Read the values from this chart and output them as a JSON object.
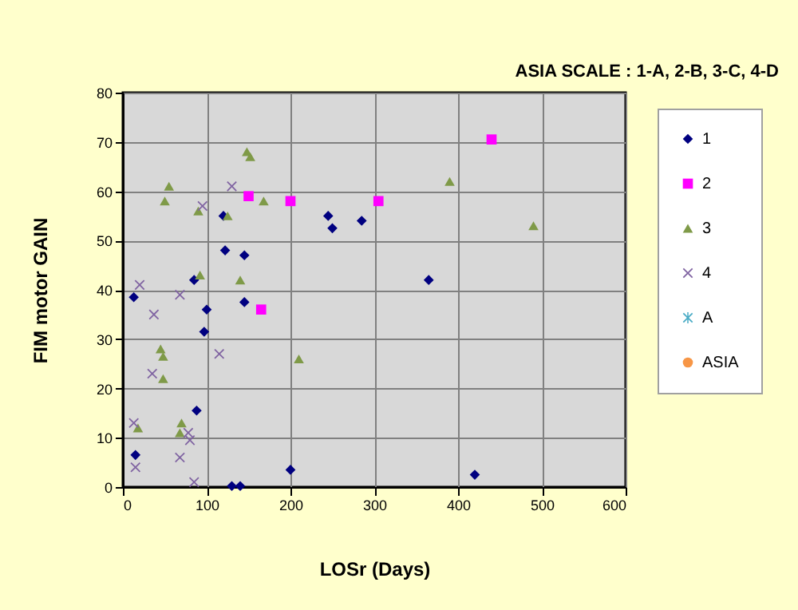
{
  "chart_data": {
    "type": "scatter",
    "title": "ASIA SCALE : 1-A, 2-B, 3-C, 4-D",
    "xlabel": "LOSr (Days)",
    "ylabel": "FIM motor GAIN",
    "xlim": [
      0,
      600
    ],
    "xticks": [
      0,
      100,
      200,
      300,
      400,
      500,
      600
    ],
    "ylim": [
      0,
      80
    ],
    "yticks": [
      0,
      10,
      20,
      30,
      40,
      50,
      60,
      70,
      80
    ],
    "grid": true,
    "legend": "right",
    "series": [
      {
        "name": "1",
        "color": "#000080",
        "marker": "diamond",
        "x": [
          13,
          15,
          85,
          88,
          97,
          100,
          120,
          122,
          130,
          140,
          145,
          145,
          200,
          245,
          250,
          285,
          365,
          420
        ],
        "values": [
          38.5,
          6.5,
          42,
          15.5,
          31.5,
          36,
          55,
          48,
          0.2,
          0.2,
          47,
          37.5,
          3.5,
          55,
          52.5,
          54,
          42,
          2.5
        ]
      },
      {
        "name": "2",
        "color": "#ff00ff",
        "marker": "square",
        "x": [
          150,
          165,
          200,
          305,
          440
        ],
        "values": [
          59,
          36,
          58,
          58,
          70.5
        ]
      },
      {
        "name": "3",
        "color": "#7f9a48",
        "marker": "triangle",
        "x": [
          18,
          45,
          48,
          48,
          50,
          55,
          68,
          70,
          90,
          92,
          125,
          140,
          148,
          152,
          168,
          210,
          390,
          490
        ],
        "values": [
          12,
          28,
          26.5,
          22,
          58,
          61,
          11,
          13,
          56,
          43,
          55,
          42,
          68,
          67,
          58,
          26,
          62,
          53
        ]
      },
      {
        "name": "4",
        "color": "#8064a2",
        "marker": "cross",
        "x": [
          13,
          15,
          20,
          35,
          37,
          68,
          68,
          78,
          80,
          85,
          95,
          115,
          130
        ],
        "values": [
          13,
          4,
          41,
          23,
          35,
          39,
          6,
          11,
          9.5,
          1,
          57,
          27,
          61
        ]
      },
      {
        "name": "A",
        "color": "#4bacc6",
        "marker": "star"
      },
      {
        "name": "ASIA",
        "color": "#f79646",
        "marker": "circle"
      }
    ]
  }
}
